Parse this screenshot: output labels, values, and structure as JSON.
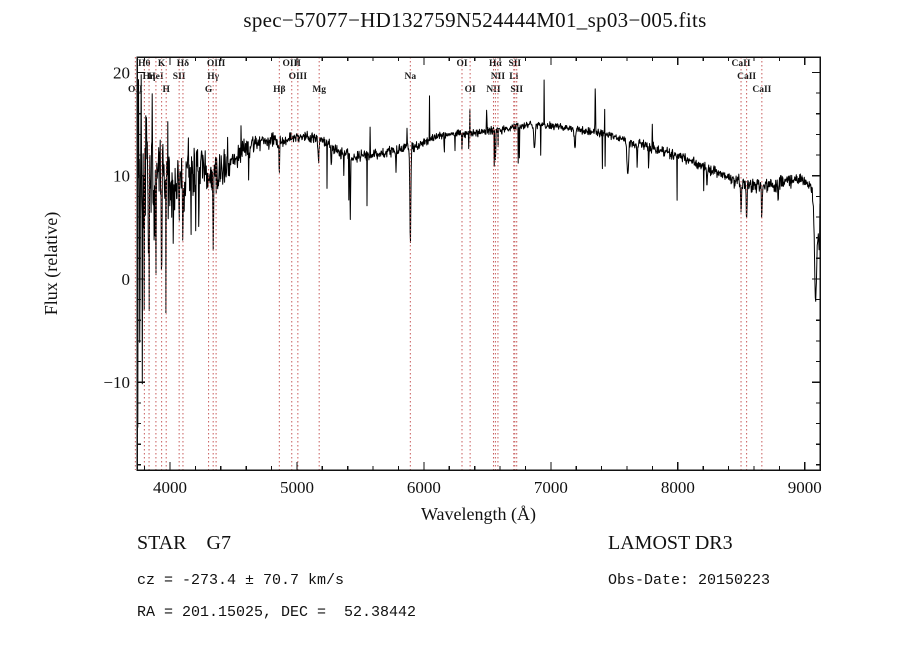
{
  "window": {
    "bg": "#ffffff"
  },
  "chart_data": {
    "type": "line",
    "title": "spec−57077−HD132759N524444M01_sp03−005.fits",
    "xlabel": "Wavelength (Å)",
    "ylabel": "Flux (relative)",
    "xlim": [
      3740,
      9120
    ],
    "ylim": [
      -18.5,
      21.5
    ],
    "xticks": [
      {
        "v": 4000,
        "label": "4000"
      },
      {
        "v": 5000,
        "label": "5000"
      },
      {
        "v": 6000,
        "label": "6000"
      },
      {
        "v": 7000,
        "label": "7000"
      },
      {
        "v": 8000,
        "label": "8000"
      },
      {
        "v": 9000,
        "label": "9000"
      }
    ],
    "yticks": [
      {
        "v": -10,
        "label": "−10"
      },
      {
        "v": 0,
        "label": "0"
      },
      {
        "v": 10,
        "label": "10"
      },
      {
        "v": 20,
        "label": "20"
      }
    ],
    "x_minor_step": 200,
    "y_minor_step": 2,
    "grid": false,
    "line_color": "#000000",
    "marker_line_color": "#c75b5b",
    "marker_label_color": "#1c1c1c",
    "spectral_lines": [
      {
        "label": "OII",
        "wavelength": 3727,
        "row": 3
      },
      {
        "label": "Hθ",
        "wavelength": 3798,
        "row": 1
      },
      {
        "label": "Hη",
        "wavelength": 3835,
        "row": 2
      },
      {
        "label": "HeI",
        "wavelength": 3889,
        "row": 2
      },
      {
        "label": "K",
        "wavelength": 3934,
        "row": 1
      },
      {
        "label": "H",
        "wavelength": 3970,
        "row": 3
      },
      {
        "label": "SII",
        "wavelength": 4072,
        "row": 2
      },
      {
        "label": "Hδ",
        "wavelength": 4102,
        "row": 1
      },
      {
        "label": "G",
        "wavelength": 4304,
        "row": 3
      },
      {
        "label": "Hγ",
        "wavelength": 4340,
        "row": 2
      },
      {
        "label": "OIII",
        "wavelength": 4363,
        "row": 1
      },
      {
        "label": "Hβ",
        "wavelength": 4861,
        "row": 3
      },
      {
        "label": "OIII",
        "wavelength": 4959,
        "row": 1
      },
      {
        "label": "OIII",
        "wavelength": 5007,
        "row": 2
      },
      {
        "label": "Mg",
        "wavelength": 5175,
        "row": 3
      },
      {
        "label": "Na",
        "wavelength": 5893,
        "row": 2
      },
      {
        "label": "OI",
        "wavelength": 6300,
        "row": 1
      },
      {
        "label": "OI",
        "wavelength": 6364,
        "row": 3
      },
      {
        "label": "NII",
        "wavelength": 6548,
        "row": 3
      },
      {
        "label": "Hα",
        "wavelength": 6563,
        "row": 1
      },
      {
        "label": "NII",
        "wavelength": 6583,
        "row": 2
      },
      {
        "label": "Li",
        "wavelength": 6708,
        "row": 2
      },
      {
        "label": "SII",
        "wavelength": 6716,
        "row": 1
      },
      {
        "label": "SII",
        "wavelength": 6731,
        "row": 3
      },
      {
        "label": "CaII",
        "wavelength": 8498,
        "row": 1
      },
      {
        "label": "CaII",
        "wavelength": 8542,
        "row": 2
      },
      {
        "label": "CaII",
        "wavelength": 8662,
        "row": 3
      }
    ],
    "continuum": [
      [
        3740,
        10.0
      ],
      [
        3780,
        9.0
      ],
      [
        3850,
        9.0
      ],
      [
        3950,
        9.5
      ],
      [
        4050,
        9.5
      ],
      [
        4150,
        10.0
      ],
      [
        4250,
        10.5
      ],
      [
        4350,
        10.0
      ],
      [
        4450,
        11.0
      ],
      [
        4550,
        12.0
      ],
      [
        4650,
        13.0
      ],
      [
        4750,
        13.5
      ],
      [
        4850,
        13.3
      ],
      [
        4950,
        13.6
      ],
      [
        5050,
        13.9
      ],
      [
        5150,
        13.7
      ],
      [
        5250,
        13.0
      ],
      [
        5350,
        12.2
      ],
      [
        5450,
        11.8
      ],
      [
        5550,
        12.0
      ],
      [
        5650,
        12.1
      ],
      [
        5750,
        12.4
      ],
      [
        5850,
        12.6
      ],
      [
        5950,
        13.0
      ],
      [
        6050,
        13.6
      ],
      [
        6150,
        14.0
      ],
      [
        6250,
        14.1
      ],
      [
        6350,
        14.0
      ],
      [
        6450,
        14.2
      ],
      [
        6550,
        14.4
      ],
      [
        6650,
        14.5
      ],
      [
        6750,
        14.8
      ],
      [
        6850,
        15.0
      ],
      [
        6950,
        14.9
      ],
      [
        7050,
        14.8
      ],
      [
        7150,
        14.6
      ],
      [
        7250,
        14.4
      ],
      [
        7350,
        14.2
      ],
      [
        7450,
        14.0
      ],
      [
        7550,
        13.6
      ],
      [
        7650,
        13.2
      ],
      [
        7750,
        12.9
      ],
      [
        7850,
        12.5
      ],
      [
        7950,
        12.1
      ],
      [
        8050,
        11.7
      ],
      [
        8150,
        11.2
      ],
      [
        8250,
        10.6
      ],
      [
        8350,
        10.1
      ],
      [
        8450,
        9.6
      ],
      [
        8550,
        9.2
      ],
      [
        8650,
        9.0
      ],
      [
        8750,
        9.1
      ],
      [
        8850,
        9.4
      ],
      [
        8950,
        9.7
      ],
      [
        9050,
        9.0
      ],
      [
        9120,
        3.0
      ]
    ],
    "noise_regions": [
      [
        3740,
        3830,
        8.0
      ],
      [
        3830,
        3930,
        6.5
      ],
      [
        3930,
        4030,
        4.5
      ],
      [
        4030,
        4230,
        3.0
      ],
      [
        4230,
        4430,
        2.2
      ],
      [
        4430,
        4630,
        1.5
      ],
      [
        4630,
        4830,
        1.0
      ],
      [
        4830,
        5430,
        0.7
      ],
      [
        5430,
        6030,
        0.6
      ],
      [
        6030,
        7600,
        0.45
      ],
      [
        7600,
        8430,
        0.6
      ],
      [
        8430,
        9120,
        0.85
      ]
    ],
    "features": [
      {
        "wl": 3745,
        "depth": 26,
        "width": 4
      },
      {
        "wl": 3753,
        "depth": -10,
        "width": 3
      },
      {
        "wl": 3762,
        "depth": 22,
        "width": 3
      },
      {
        "wl": 3772,
        "depth": -8,
        "width": 3
      },
      {
        "wl": 3782,
        "depth": 18,
        "width": 3
      },
      {
        "wl": 3798,
        "depth": 14,
        "width": 4
      },
      {
        "wl": 3815,
        "depth": -7,
        "width": 3
      },
      {
        "wl": 3835,
        "depth": 16,
        "width": 4
      },
      {
        "wl": 3860,
        "depth": -6,
        "width": 3
      },
      {
        "wl": 3889,
        "depth": 13,
        "width": 4
      },
      {
        "wl": 3934,
        "depth": 11,
        "width": 5
      },
      {
        "wl": 3968,
        "depth": 10,
        "width": 5
      },
      {
        "wl": 4026,
        "depth": 6,
        "width": 4
      },
      {
        "wl": 4072,
        "depth": 5,
        "width": 4
      },
      {
        "wl": 4102,
        "depth": 8,
        "width": 5
      },
      {
        "wl": 4144,
        "depth": -4,
        "width": 3
      },
      {
        "wl": 4227,
        "depth": 5,
        "width": 4
      },
      {
        "wl": 4340,
        "depth": 8,
        "width": 5
      },
      {
        "wl": 4383,
        "depth": 4,
        "width": 4
      },
      {
        "wl": 4455,
        "depth": -3,
        "width": 3
      },
      {
        "wl": 4861,
        "depth": 3,
        "width": 6
      },
      {
        "wl": 5170,
        "depth": 2,
        "width": 10
      },
      {
        "wl": 5270,
        "depth": 2,
        "width": 6
      },
      {
        "wl": 5420,
        "depth": 6.5,
        "width": 6
      },
      {
        "wl": 5780,
        "depth": 2,
        "width": 5
      },
      {
        "wl": 5893,
        "depth": 9.5,
        "width": 9
      },
      {
        "wl": 6160,
        "depth": 2.5,
        "width": 4
      },
      {
        "wl": 6300,
        "depth": 1.5,
        "width": 5
      },
      {
        "wl": 6495,
        "depth": -2.5,
        "width": 4
      },
      {
        "wl": 6563,
        "depth": 3,
        "width": 7
      },
      {
        "wl": 6870,
        "depth": 2.5,
        "width": 12
      },
      {
        "wl": 7190,
        "depth": 1.8,
        "width": 12
      },
      {
        "wl": 7350,
        "depth": -4.8,
        "width": 5
      },
      {
        "wl": 7605,
        "depth": 3,
        "width": 16
      },
      {
        "wl": 7680,
        "depth": 2.5,
        "width": 5
      },
      {
        "wl": 7770,
        "depth": 2,
        "width": 5
      },
      {
        "wl": 8230,
        "depth": 2.2,
        "width": 5
      },
      {
        "wl": 8498,
        "depth": 3,
        "width": 8
      },
      {
        "wl": 8542,
        "depth": 3.5,
        "width": 8
      },
      {
        "wl": 8662,
        "depth": 3,
        "width": 8
      },
      {
        "wl": 8790,
        "depth": 1.5,
        "width": 5
      },
      {
        "wl": 9085,
        "depth": 8,
        "width": 18
      }
    ],
    "spikes": {
      "prob": 0.012,
      "min": 1.5,
      "max": 5.0,
      "down_fraction": 0.72
    },
    "seed": 7,
    "step": 3
  },
  "annotations": {
    "class_label": "STAR    G7",
    "survey": "LAMOST DR3",
    "cz": "cz = -273.4 ± 70.7 km/s",
    "obs_date": "Obs-Date: 20150223",
    "radec": "RA = 201.15025, DEC =  52.38442"
  }
}
